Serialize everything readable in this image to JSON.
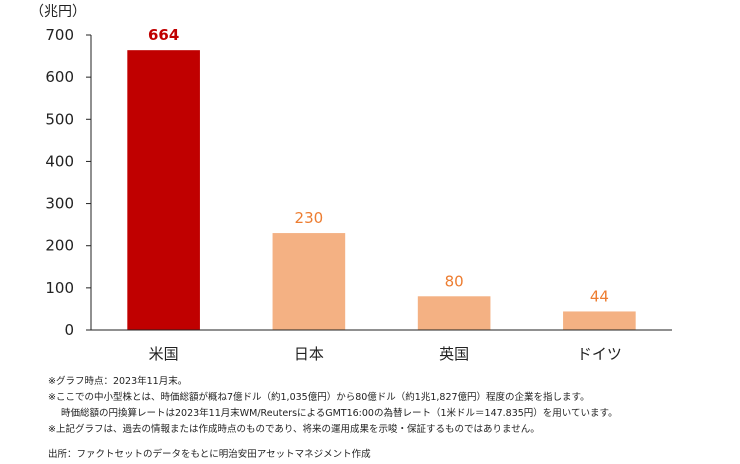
{
  "chart_data": {
    "type": "bar",
    "unit_label": "（兆円）",
    "categories": [
      "米国",
      "日本",
      "英国",
      "ドイツ"
    ],
    "values": [
      664,
      230,
      80,
      44
    ],
    "ylim": [
      0,
      700
    ],
    "yticks": [
      0,
      100,
      200,
      300,
      400,
      500,
      600,
      700
    ],
    "grid": false,
    "colors": [
      "#c00000",
      "#f4b183",
      "#f4b183",
      "#f4b183"
    ],
    "label_colors": [
      "#c00000",
      "#ed7d31",
      "#ed7d31",
      "#ed7d31"
    ],
    "highlight_index": 0
  },
  "notes": {
    "line1": "※グラフ時点：2023年11月末。",
    "line2": "※ここでの中小型株とは、時価総額が概ね7億ドル（約1,035億円）から80億ドル（約1兆1,827億円）程度の企業を指します。",
    "line3": "時価総額の円換算レートは2023年11月末WM/ReutersによるGMT16:00の為替レート（1米ドル＝147.835円）を用いています。",
    "line4": "※上記グラフは、過去の情報または作成時点のものであり、将来の運用成果を示唆・保証するものではありません。"
  },
  "source": "出所：ファクトセットのデータをもとに明治安田アセットマネジメント作成"
}
